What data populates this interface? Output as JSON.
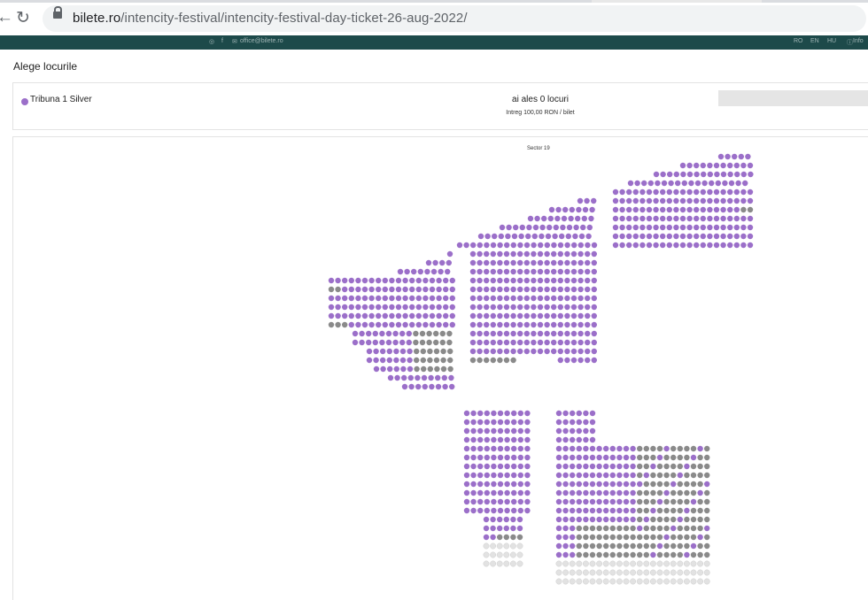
{
  "browser": {
    "url_domain": "bilete.ro",
    "url_path": "/intencity-festival/intencity-festival-day-ticket-26-aug-2022/",
    "back_icon": "arrow-left-icon",
    "reload_icon": "reload-icon",
    "lock_icon": "lock-icon"
  },
  "site_header": {
    "social_icons": [
      "instagram-icon",
      "facebook-icon",
      "mail-icon"
    ],
    "email": "office@bilete.ro",
    "languages": [
      "RO",
      "EN",
      "HU"
    ],
    "info_label": "Info"
  },
  "modal": {
    "title": "Alege locurile",
    "category": {
      "name": "Tribuna 1 Silver",
      "color": "#9b6fc9"
    },
    "seats_selected": "ai ales 0 locuri",
    "price_line": "Intreg 100,00 RON / bilet"
  },
  "seat_map": {
    "sector_label": "Sector 19",
    "colors": {
      "available": "#9b6fc9",
      "taken": "#8a8a8a",
      "unavailable": "#e2e2e2",
      "unavailable_text": "#444"
    }
  }
}
